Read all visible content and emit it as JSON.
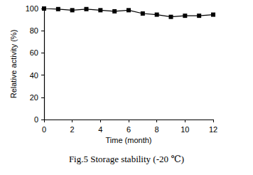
{
  "chart_data": {
    "type": "line",
    "title": "Fig.5 Storage stability (-20 ℃)",
    "x_label": "Time (month)",
    "y_label": "Relative activity (%)",
    "x": [
      0,
      1,
      2,
      3,
      4,
      5,
      6,
      7,
      8,
      9,
      10,
      11,
      12
    ],
    "values": [
      100,
      99.5,
      98.5,
      99.5,
      98.5,
      97.5,
      98.5,
      95.5,
      94.5,
      92.5,
      93.5,
      93.5,
      94.5
    ],
    "color": "#000000",
    "marker": "square",
    "line_style": "solid",
    "xlim": [
      0,
      12
    ],
    "xticks": [
      0,
      2,
      4,
      6,
      8,
      10,
      12
    ],
    "ylim": [
      0,
      100
    ],
    "yticks": [
      0,
      20,
      40,
      60,
      80,
      100
    ],
    "grid": false
  }
}
